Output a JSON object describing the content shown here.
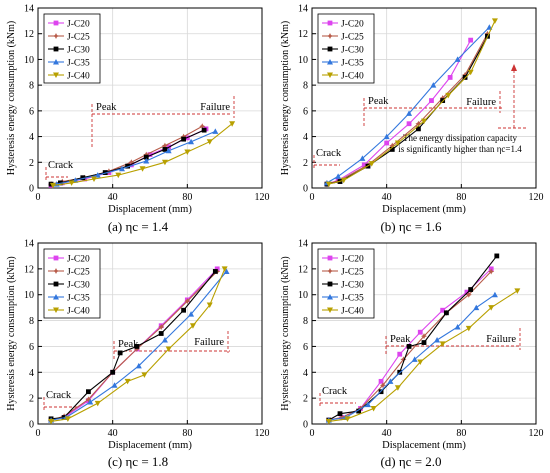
{
  "colors": {
    "J-C20": "#dd44ee",
    "J-C25": "#b85c4a",
    "J-C30": "#000000",
    "J-C35": "#3377dd",
    "J-C40": "#b8a000",
    "annotation": "#cc3333"
  },
  "chart_data": [
    {
      "type": "line",
      "caption": "(a) ηc = 1.4",
      "xlabel": "Displacement (mm)",
      "ylabel": "Hysteresis energy consumption (kNm)",
      "xlim": [
        0,
        120
      ],
      "ylim": [
        0,
        14
      ],
      "xticks": [
        0,
        40,
        80,
        120
      ],
      "yticks": [
        0,
        2,
        4,
        6,
        8,
        10,
        12,
        14
      ],
      "legend_position": "top-left",
      "annotations": [
        "Crack",
        "Peak",
        "Failure"
      ],
      "series": [
        {
          "name": "J-C20",
          "x": [
            7,
            13,
            25,
            38,
            50,
            60,
            70,
            80,
            90
          ],
          "y": [
            0.2,
            0.4,
            0.7,
            1.2,
            1.8,
            2.6,
            3.2,
            3.9,
            4.6
          ]
        },
        {
          "name": "J-C25",
          "x": [
            7,
            13,
            25,
            38,
            50,
            58,
            68,
            78,
            88
          ],
          "y": [
            0.3,
            0.5,
            0.8,
            1.3,
            2.0,
            2.6,
            3.3,
            4.0,
            4.8
          ]
        },
        {
          "name": "J-C30",
          "x": [
            7,
            12,
            24,
            36,
            48,
            58,
            68,
            78,
            89
          ],
          "y": [
            0.3,
            0.4,
            0.8,
            1.2,
            1.7,
            2.4,
            3.0,
            3.8,
            4.5
          ]
        },
        {
          "name": "J-C35",
          "x": [
            10,
            20,
            32,
            45,
            58,
            70,
            82,
            95
          ],
          "y": [
            0.3,
            0.6,
            1.0,
            1.5,
            2.1,
            2.9,
            3.6,
            4.4
          ]
        },
        {
          "name": "J-C40",
          "x": [
            8,
            18,
            30,
            43,
            56,
            68,
            80,
            92,
            104
          ],
          "y": [
            0.2,
            0.4,
            0.7,
            1.0,
            1.5,
            2.0,
            2.8,
            3.6,
            5.0
          ]
        }
      ]
    },
    {
      "type": "line",
      "caption": "(b) ηc = 1.6",
      "xlabel": "Displacement (mm)",
      "ylabel": "Hysteresis energy consumption (kNm)",
      "xlim": [
        0,
        120
      ],
      "ylim": [
        0,
        14
      ],
      "xticks": [
        0,
        40,
        80,
        120
      ],
      "yticks": [
        0,
        2,
        4,
        6,
        8,
        10,
        12,
        14
      ],
      "legend_position": "top-left",
      "annotations": [
        "Crack",
        "Peak",
        "Failure",
        "The energy dissipation capacity",
        "is significantly higher than ηc=1.4"
      ],
      "series": [
        {
          "name": "J-C20",
          "x": [
            8,
            14,
            28,
            40,
            52,
            64,
            74,
            85
          ],
          "y": [
            0.3,
            0.6,
            1.8,
            3.5,
            5.0,
            6.8,
            8.6,
            11.5
          ]
        },
        {
          "name": "J-C25",
          "x": [
            8,
            15,
            30,
            43,
            57,
            70,
            82,
            94
          ],
          "y": [
            0.3,
            0.6,
            1.8,
            3.3,
            5.0,
            7.0,
            8.8,
            12.0
          ]
        },
        {
          "name": "J-C30",
          "x": [
            8,
            15,
            30,
            43,
            57,
            70,
            82,
            94
          ],
          "y": [
            0.3,
            0.5,
            1.7,
            3.0,
            4.6,
            6.8,
            8.6,
            11.8
          ]
        },
        {
          "name": "J-C35",
          "x": [
            8,
            14,
            27,
            40,
            52,
            65,
            78,
            95
          ],
          "y": [
            0.4,
            0.9,
            2.3,
            4.0,
            5.8,
            8.0,
            10.0,
            12.5
          ]
        },
        {
          "name": "J-C40",
          "x": [
            9,
            17,
            32,
            46,
            60,
            73,
            85,
            98
          ],
          "y": [
            0.3,
            0.6,
            1.9,
            3.5,
            5.2,
            7.2,
            9.0,
            13.0
          ]
        }
      ]
    },
    {
      "type": "line",
      "caption": "(c) ηc = 1.8",
      "xlabel": "Displacement (mm)",
      "ylabel": "Hysteresis energy consumption (kNm)",
      "xlim": [
        0,
        120
      ],
      "ylim": [
        0,
        14
      ],
      "xticks": [
        0,
        40,
        80,
        120
      ],
      "yticks": [
        0,
        2,
        4,
        6,
        8,
        10,
        12,
        14
      ],
      "legend_position": "top-left",
      "annotations": [
        "Crack",
        "Peak",
        "Failure"
      ],
      "series": [
        {
          "name": "J-C20",
          "x": [
            7,
            14,
            27,
            40,
            53,
            66,
            80,
            96
          ],
          "y": [
            0.3,
            0.5,
            1.8,
            4.0,
            5.8,
            7.6,
            9.6,
            12.0
          ]
        },
        {
          "name": "J-C25",
          "x": [
            7,
            14,
            27,
            40,
            53,
            66,
            80,
            96
          ],
          "y": [
            0.3,
            0.6,
            1.9,
            4.0,
            5.8,
            7.5,
            9.5,
            11.8
          ]
        },
        {
          "name": "J-C30",
          "x": [
            7,
            14,
            27,
            40,
            44,
            53,
            66,
            78,
            95
          ],
          "y": [
            0.4,
            0.5,
            2.5,
            4.0,
            5.5,
            6.0,
            7.0,
            8.8,
            11.8
          ]
        },
        {
          "name": "J-C35",
          "x": [
            7,
            15,
            28,
            41,
            54,
            68,
            82,
            101
          ],
          "y": [
            0.3,
            0.5,
            1.7,
            3.0,
            4.5,
            6.5,
            8.5,
            11.8
          ]
        },
        {
          "name": "J-C40",
          "x": [
            7,
            16,
            32,
            48,
            57,
            70,
            83,
            92,
            100
          ],
          "y": [
            0.2,
            0.4,
            1.6,
            3.3,
            3.8,
            5.8,
            7.6,
            9.2,
            12.0
          ]
        }
      ]
    },
    {
      "type": "line",
      "caption": "(d) ηc = 2.0",
      "xlabel": "Displacement (mm)",
      "ylabel": "Hysteresis energy consumption (kNm)",
      "xlim": [
        0,
        120
      ],
      "ylim": [
        0,
        14
      ],
      "xticks": [
        0,
        40,
        80,
        120
      ],
      "yticks": [
        0,
        2,
        4,
        6,
        8,
        10,
        12,
        14
      ],
      "legend_position": "top-left",
      "annotations": [
        "Crack",
        "Peak",
        "Failure"
      ],
      "series": [
        {
          "name": "J-C20",
          "x": [
            9,
            16,
            26,
            37,
            47,
            58,
            70,
            83,
            96
          ],
          "y": [
            0.3,
            0.5,
            1.2,
            3.3,
            5.4,
            7.1,
            8.8,
            10.2,
            12.0
          ]
        },
        {
          "name": "J-C25",
          "x": [
            9,
            16,
            26,
            38,
            49,
            60,
            72,
            84,
            96
          ],
          "y": [
            0.3,
            0.5,
            1.2,
            3.0,
            5.0,
            6.8,
            8.6,
            10.0,
            11.8
          ]
        },
        {
          "name": "J-C30",
          "x": [
            9,
            15,
            25,
            37,
            47,
            52,
            60,
            72,
            85,
            99
          ],
          "y": [
            0.3,
            0.8,
            1.0,
            2.5,
            4.0,
            6.0,
            6.3,
            8.6,
            10.4,
            13.0
          ]
        },
        {
          "name": "J-C35",
          "x": [
            9,
            18,
            30,
            42,
            55,
            67,
            78,
            88,
            98
          ],
          "y": [
            0.3,
            0.5,
            1.5,
            3.3,
            5.0,
            6.5,
            7.5,
            9.0,
            10.0
          ]
        },
        {
          "name": "J-C40",
          "x": [
            9,
            19,
            33,
            46,
            58,
            70,
            84,
            96,
            110
          ],
          "y": [
            0.2,
            0.4,
            1.2,
            2.8,
            4.8,
            6.2,
            7.4,
            9.0,
            10.3
          ]
        }
      ]
    }
  ]
}
